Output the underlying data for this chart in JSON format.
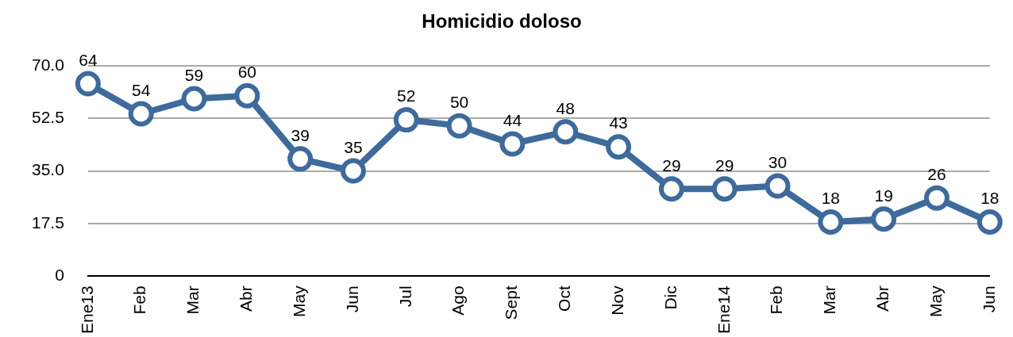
{
  "chart_data": {
    "type": "line",
    "title": "Homicidio doloso",
    "categories": [
      "Ene13",
      "Feb",
      "Mar",
      "Abr",
      "May",
      "Jun",
      "Jul",
      "Ago",
      "Sept",
      "Oct",
      "Nov",
      "Dic",
      "Ene14",
      "Feb",
      "Mar",
      "Abr",
      "May",
      "Jun"
    ],
    "series": [
      {
        "color": "#3e6a9c",
        "values": [
          64,
          54,
          59,
          60,
          39,
          35,
          52,
          50,
          44,
          48,
          43,
          29,
          29,
          30,
          18,
          19,
          26,
          18
        ]
      }
    ],
    "ylim": [
      0,
      70
    ],
    "yticks": [
      0,
      {
        "value": 17.5,
        "label": "17.5"
      },
      {
        "value": 35,
        "label": "35.0"
      },
      {
        "value": 52.5,
        "label": "52.5"
      },
      {
        "value": 70,
        "label": "70.0"
      }
    ],
    "grid": "y",
    "legend": false,
    "marker": "circle",
    "line_style": "solid",
    "data_labels": true
  }
}
